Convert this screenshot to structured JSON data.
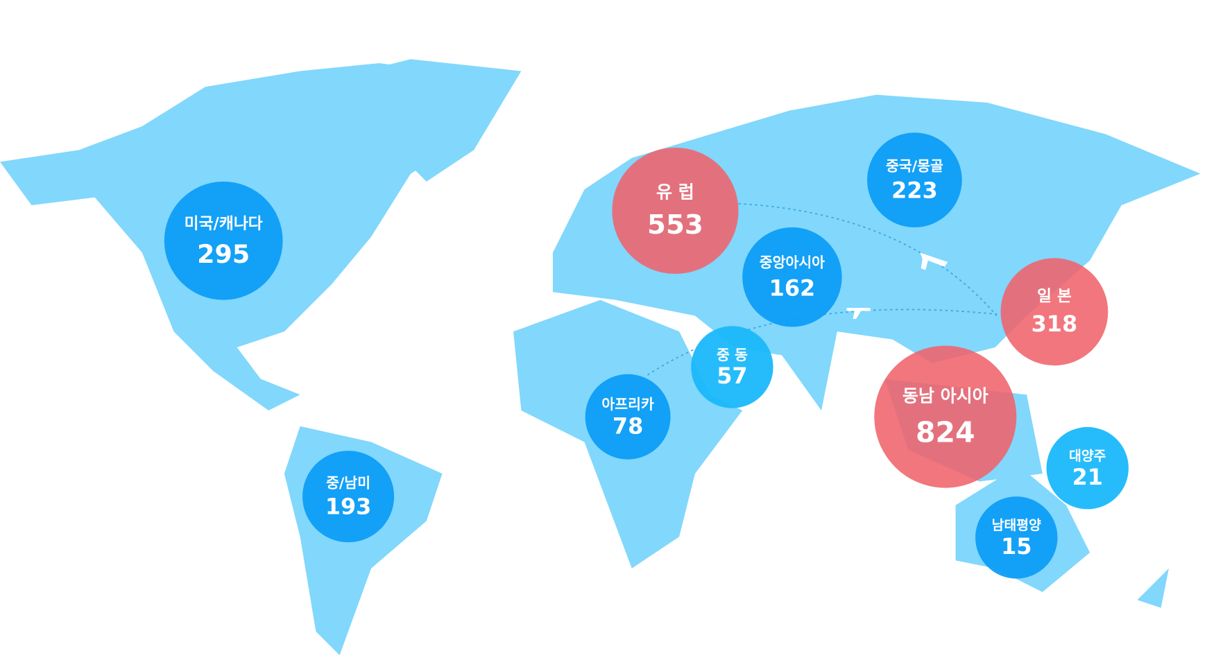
{
  "regions": [
    {
      "name": "미국/캐나다",
      "value": "295"
    },
    {
      "name": "유 럽",
      "value": "553"
    },
    {
      "name": "중국/몽골",
      "value": "223"
    },
    {
      "name": "중앙아시아",
      "value": "162"
    },
    {
      "name": "일 본",
      "value": "318"
    },
    {
      "name": "중 동",
      "value": "57"
    },
    {
      "name": "아프리카",
      "value": "78"
    },
    {
      "name": "동남 아시아",
      "value": "824"
    },
    {
      "name": "대양주",
      "value": "21"
    },
    {
      "name": "남태평양",
      "value": "15"
    },
    {
      "name": "중/남미",
      "value": "193"
    }
  ]
}
